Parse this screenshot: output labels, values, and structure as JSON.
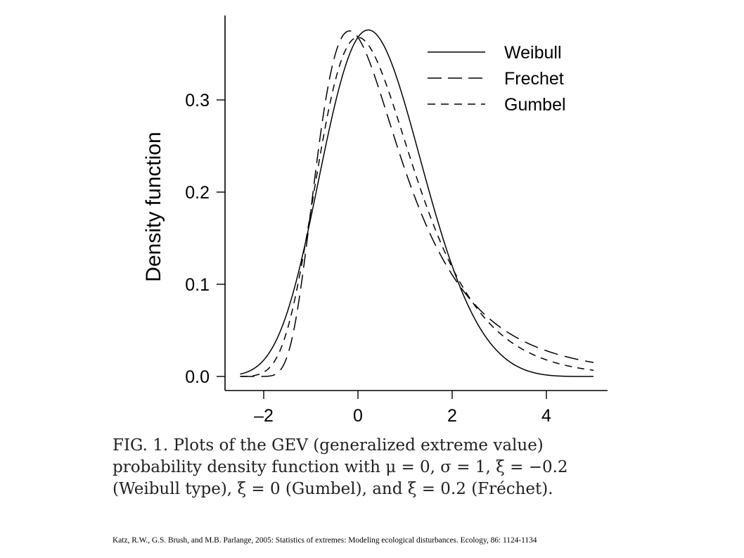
{
  "chart_data": {
    "type": "line",
    "title": "",
    "xlabel": "",
    "ylabel": "Density function",
    "xlim": [
      -2.5,
      5
    ],
    "ylim": [
      0,
      0.38
    ],
    "x_ticks": [
      -2,
      0,
      2,
      4
    ],
    "x_tick_labels": [
      "–2",
      "0",
      "2",
      "4"
    ],
    "y_ticks": [
      0.0,
      0.1,
      0.2,
      0.3
    ],
    "y_tick_labels": [
      "0.0",
      "0.1",
      "0.2",
      "0.3"
    ],
    "grid": false,
    "legend_position": "top-right",
    "params": {
      "mu": 0,
      "sigma": 1
    },
    "series": [
      {
        "name": "Weibull",
        "xi": -0.2,
        "style": "solid"
      },
      {
        "name": "Frechet",
        "xi": 0.2,
        "style": "long-dash"
      },
      {
        "name": "Gumbel",
        "xi": 0,
        "style": "short-dash"
      }
    ]
  },
  "caption": {
    "lines": [
      "FIG. 1.   Plots of the GEV (generalized extreme value)",
      "probability density function with μ = 0, σ = 1, ξ = −0.2",
      "(Weibull type), ξ = 0 (Gumbel), and ξ = 0.2 (Fréchet)."
    ]
  },
  "citation": "Katz, R.W., G.S. Brush, and M.B. Parlange, 2005: Statistics of extremes: Modeling ecological disturbances. Ecology, 86: 1124-1134"
}
